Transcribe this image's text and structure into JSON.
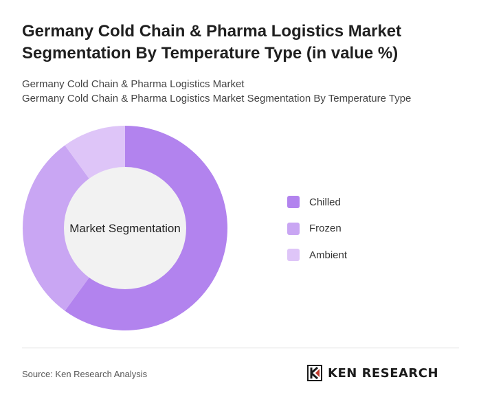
{
  "chart_data": {
    "type": "pie",
    "title": "Germany Cold Chain & Pharma Logistics Market Segmentation By Temperature Type (in value %)",
    "subtitles": [
      "Germany Cold Chain & Pharma Logistics Market",
      "Germany Cold Chain & Pharma Logistics Market Segmentation By Temperature Type"
    ],
    "center_label": "Market Segmentation",
    "categories": [
      "Chilled",
      "Frozen",
      "Ambient"
    ],
    "values": [
      60,
      30,
      10
    ],
    "colors": [
      "#b283ee",
      "#c9a6f3",
      "#dec5f8"
    ],
    "legend_position": "right"
  },
  "footer": {
    "source": "Source: Ken Research Analysis",
    "logo_text": "KEN RESEARCH"
  }
}
